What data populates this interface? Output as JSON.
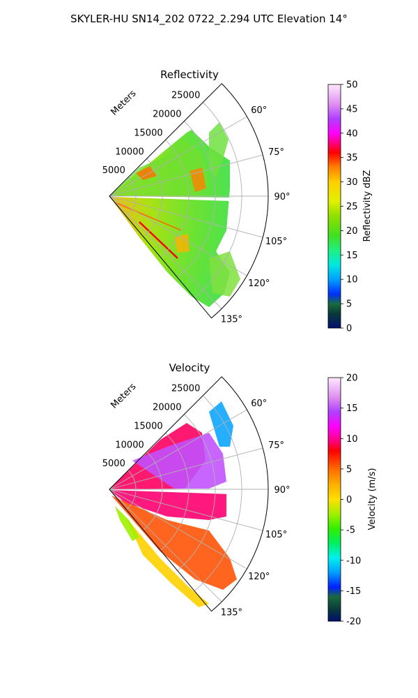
{
  "figure": {
    "title": "SKYLER-HU  SN14_202  0722_2.294 UTC Elevation 14°"
  },
  "chart_data": [
    {
      "type": "heatmap",
      "subtype": "polar-sector",
      "title": "Reflectivity",
      "radial_label": "Meters",
      "radial_ticks": [
        5000,
        10000,
        15000,
        20000,
        25000
      ],
      "radial_range": [
        0,
        30000
      ],
      "azimuth_ticks": [
        "60°",
        "75°",
        "90°",
        "105°",
        "120°",
        "135°"
      ],
      "azimuth_values": [
        60,
        75,
        90,
        105,
        120,
        135
      ],
      "azimuth_range": [
        45,
        140
      ],
      "colorbar": {
        "label": "Reflectivity dBZ",
        "range": [
          0,
          50
        ],
        "ticks": [
          0,
          5,
          10,
          15,
          20,
          25,
          30,
          35,
          40,
          45,
          50
        ]
      },
      "features": [
        {
          "az": [
            58,
            62
          ],
          "r": [
            7000,
            10000
          ],
          "value": 33
        },
        {
          "az": [
            76,
            80
          ],
          "r": [
            14000,
            18000
          ],
          "value": 32
        },
        {
          "az": [
            112,
            114
          ],
          "r": [
            5000,
            14000
          ],
          "value": 40
        },
        {
          "az": [
            115,
            118
          ],
          "r": [
            12000,
            14000
          ],
          "value": 30
        }
      ]
    },
    {
      "type": "heatmap",
      "subtype": "polar-sector",
      "title": "Velocity",
      "radial_label": "Meters",
      "radial_ticks": [
        5000,
        10000,
        15000,
        20000,
        25000
      ],
      "radial_range": [
        0,
        30000
      ],
      "azimuth_ticks": [
        "60°",
        "75°",
        "90°",
        "105°",
        "120°",
        "135°"
      ],
      "azimuth_values": [
        60,
        75,
        90,
        105,
        120,
        135
      ],
      "azimuth_range": [
        45,
        140
      ],
      "colorbar": {
        "label": "Velocity (m/s)",
        "range": [
          -20,
          20
        ],
        "ticks": [
          -20,
          -15,
          -10,
          -5,
          0,
          5,
          10,
          15,
          20
        ]
      },
      "features": [
        {
          "az": [
            50,
            70
          ],
          "r": [
            3000,
            22000
          ],
          "value": 10
        },
        {
          "az": [
            70,
            85
          ],
          "r": [
            3000,
            20000
          ],
          "value": 14
        },
        {
          "az": [
            90,
            100
          ],
          "r": [
            0,
            22000
          ],
          "value": 10
        },
        {
          "az": [
            100,
            120
          ],
          "r": [
            2000,
            22000
          ],
          "value": 5
        },
        {
          "az": [
            120,
            135
          ],
          "r": [
            4000,
            20000
          ],
          "value": 1
        },
        {
          "az": [
            60,
            72
          ],
          "r": [
            20000,
            27000
          ],
          "value": -11
        }
      ]
    }
  ]
}
